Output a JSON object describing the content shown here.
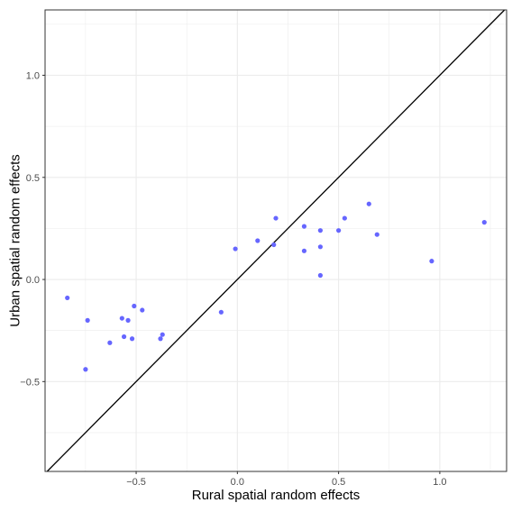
{
  "chart_data": {
    "type": "scatter",
    "title": "",
    "xlabel": "Rural spatial random effects",
    "ylabel": "Urban spatial random effects",
    "xlim": [
      -0.95,
      1.33
    ],
    "ylim": [
      -0.94,
      1.32
    ],
    "xticks": [
      -0.5,
      0.0,
      0.5,
      1.0
    ],
    "yticks": [
      -0.5,
      0.0,
      0.5,
      1.0
    ],
    "xtick_labels": [
      "−0.5",
      "0.0",
      "0.5",
      "1.0"
    ],
    "ytick_labels": [
      "−0.5",
      "0.0",
      "0.5",
      "1.0"
    ],
    "grid": true,
    "reference_line": "y = x",
    "point_color": "#6666ff",
    "line_color": "#000000",
    "series": [
      {
        "x": [
          -0.84,
          -0.74,
          -0.75,
          -0.63,
          -0.57,
          -0.56,
          -0.54,
          -0.52,
          -0.51,
          -0.47,
          -0.38,
          -0.37,
          -0.08,
          -0.01,
          0.1,
          0.18,
          0.19,
          0.33,
          0.33,
          0.41,
          0.41,
          0.41,
          0.5,
          0.53,
          0.65,
          0.69,
          0.96,
          1.22
        ],
        "y": [
          -0.09,
          -0.2,
          -0.44,
          -0.31,
          -0.19,
          -0.28,
          -0.2,
          -0.29,
          -0.13,
          -0.15,
          -0.29,
          -0.27,
          -0.16,
          0.15,
          0.19,
          0.17,
          0.3,
          0.26,
          0.14,
          0.24,
          0.16,
          0.02,
          0.24,
          0.3,
          0.37,
          0.22,
          0.09,
          0.28
        ]
      }
    ]
  }
}
